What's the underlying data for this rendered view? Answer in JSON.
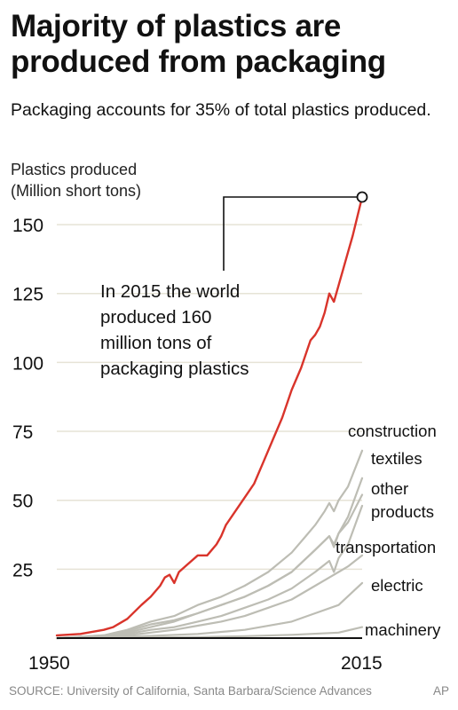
{
  "title": "Majority of plastics are produced from packaging",
  "subtitle": "Packaging accounts for 35% of total plastics produced.",
  "source": "SOURCE: University of California, Santa Barbara/Science Advances",
  "brand": "AP",
  "chart_data": {
    "type": "line",
    "ylabel": [
      "Plastics produced",
      "(Million short tons)"
    ],
    "yticks": [
      25,
      50,
      75,
      100,
      125,
      150
    ],
    "xticks": [
      1950,
      2015
    ],
    "xlim": [
      1950,
      2015
    ],
    "ylim": [
      0,
      160
    ],
    "grid": true,
    "annotation": {
      "lines": [
        "In 2015 the world",
        "produced 160",
        "million tons of",
        "packaging plastics"
      ],
      "x": 2015,
      "y": 160
    },
    "series": [
      {
        "name": "packaging",
        "color": "#d9342b",
        "x": [
          1950,
          1955,
          1960,
          1962,
          1965,
          1968,
          1970,
          1972,
          1973,
          1974,
          1975,
          1976,
          1978,
          1980,
          1982,
          1984,
          1985,
          1986,
          1988,
          1990,
          1992,
          1994,
          1996,
          1998,
          2000,
          2002,
          2004,
          2005,
          2006,
          2007,
          2008,
          2009,
          2010,
          2011,
          2012,
          2013,
          2015
        ],
        "values": [
          1,
          1.5,
          3,
          4,
          7,
          12,
          15,
          19,
          22,
          23,
          20,
          24,
          27,
          30,
          30,
          34,
          37,
          41,
          46,
          51,
          56,
          64,
          72,
          80,
          90,
          98,
          108,
          110,
          113,
          118,
          125,
          122,
          128,
          134,
          140,
          146,
          160
        ]
      },
      {
        "name": "construction",
        "color": "#bdbdb4",
        "x": [
          1950,
          1960,
          1965,
          1970,
          1975,
          1980,
          1985,
          1990,
          1995,
          2000,
          2003,
          2005,
          2007,
          2008,
          2009,
          2010,
          2012,
          2015
        ],
        "values": [
          0,
          1,
          3,
          6,
          8,
          12,
          15,
          19,
          24,
          31,
          37,
          41,
          46,
          49,
          46,
          50,
          55,
          68
        ]
      },
      {
        "name": "textiles",
        "color": "#bdbdb4",
        "x": [
          1950,
          1960,
          1965,
          1970,
          1975,
          1980,
          1985,
          1990,
          1995,
          2000,
          2005,
          2008,
          2009,
          2010,
          2012,
          2015
        ],
        "values": [
          0,
          0.5,
          2,
          4,
          6,
          9,
          12,
          15,
          19,
          24,
          32,
          37,
          33,
          38,
          44,
          58
        ]
      },
      {
        "name": "other products",
        "color": "#bdbdb4",
        "x": [
          1950,
          1960,
          1965,
          1970,
          1975,
          1980,
          1985,
          1990,
          1995,
          2000,
          2005,
          2008,
          2009,
          2010,
          2012,
          2015
        ],
        "values": [
          0,
          1,
          2.5,
          5,
          6.5,
          9,
          12,
          15,
          19,
          24,
          32,
          37,
          34,
          38,
          42,
          52
        ]
      },
      {
        "name": "transportation",
        "color": "#bdbdb4",
        "x": [
          1950,
          1960,
          1965,
          1970,
          1975,
          1980,
          1985,
          1990,
          1995,
          2000,
          2005,
          2008,
          2009,
          2010,
          2012,
          2015
        ],
        "values": [
          0,
          0.5,
          1.5,
          3,
          4,
          6,
          8,
          11,
          14,
          18,
          24,
          28,
          24,
          29,
          34,
          48
        ]
      },
      {
        "name": "electric",
        "color": "#bdbdb4",
        "x": [
          1950,
          1960,
          1965,
          1970,
          1975,
          1980,
          1985,
          1990,
          1995,
          2000,
          2005,
          2008,
          2010,
          2012,
          2015
        ],
        "values": [
          0,
          0.5,
          1,
          2,
          3,
          4.5,
          6,
          8,
          11,
          14,
          19,
          22,
          24,
          26,
          30
        ]
      },
      {
        "name": "machinery",
        "color": "#bdbdb4",
        "x": [
          1950,
          1960,
          1970,
          1980,
          1990,
          2000,
          2005,
          2010,
          2015
        ],
        "values": [
          0,
          0.3,
          0.8,
          1.5,
          3,
          6,
          9,
          12,
          20
        ]
      },
      {
        "name": "",
        "color": "#bdbdb4",
        "x": [
          1950,
          1960,
          1970,
          1980,
          1990,
          2000,
          2010,
          2015
        ],
        "values": [
          0,
          0.1,
          0.2,
          0.4,
          0.7,
          1.2,
          2,
          4
        ]
      }
    ],
    "labels": [
      {
        "name": "construction",
        "lines": [
          "construction"
        ]
      },
      {
        "name": "textiles",
        "lines": [
          "textiles"
        ]
      },
      {
        "name": "other products",
        "lines": [
          "other",
          "products"
        ]
      },
      {
        "name": "transportation",
        "lines": [
          "transportation"
        ]
      },
      {
        "name": "electric",
        "lines": [
          "electric"
        ]
      },
      {
        "name": "machinery",
        "lines": [
          "machinery"
        ]
      }
    ]
  }
}
